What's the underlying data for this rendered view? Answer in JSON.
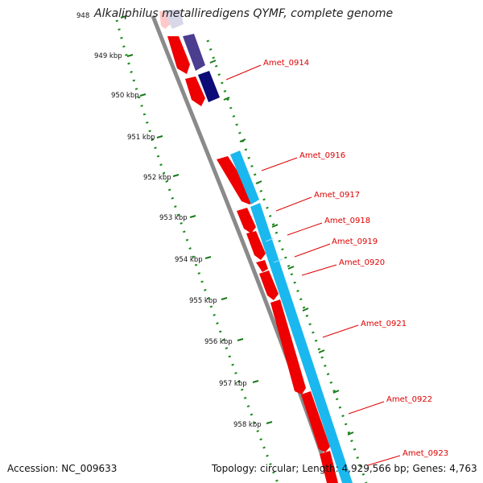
{
  "title": "Alkaliphilus metalliredigens QYMF, complete genome",
  "footer": {
    "accession": "Accession: NC_009633",
    "summary": "Topology: circular; Length: 4,929,566 bp; Genes: 4,763"
  },
  "ruler": {
    "unit": "kbp",
    "ticks": [
      "948",
      "949 kbp",
      "950 kbp",
      "951 kbp",
      "952 kbp",
      "953 kbp",
      "954 kbp",
      "955 kbp",
      "956 kbp",
      "957 kbp",
      "958 kbp"
    ]
  },
  "genes": [
    {
      "label": "Amet_0914"
    },
    {
      "label": "Amet_0916"
    },
    {
      "label": "Amet_0917"
    },
    {
      "label": "Amet_0918"
    },
    {
      "label": "Amet_0919"
    },
    {
      "label": "Amet_0920"
    },
    {
      "label": "Amet_0921"
    },
    {
      "label": "Amet_0922"
    },
    {
      "label": "Amet_0923"
    }
  ],
  "colors": {
    "reverse_cds": "#ee0000",
    "forward_cds": "#1ab8ee",
    "pale_feature": "#d8d8ea",
    "purple_feature": "#4b3d8f",
    "navy_feature": "#0c0c78",
    "backbone": "#8a8a8a",
    "ticks": "#008000",
    "labels": "#e00000"
  }
}
